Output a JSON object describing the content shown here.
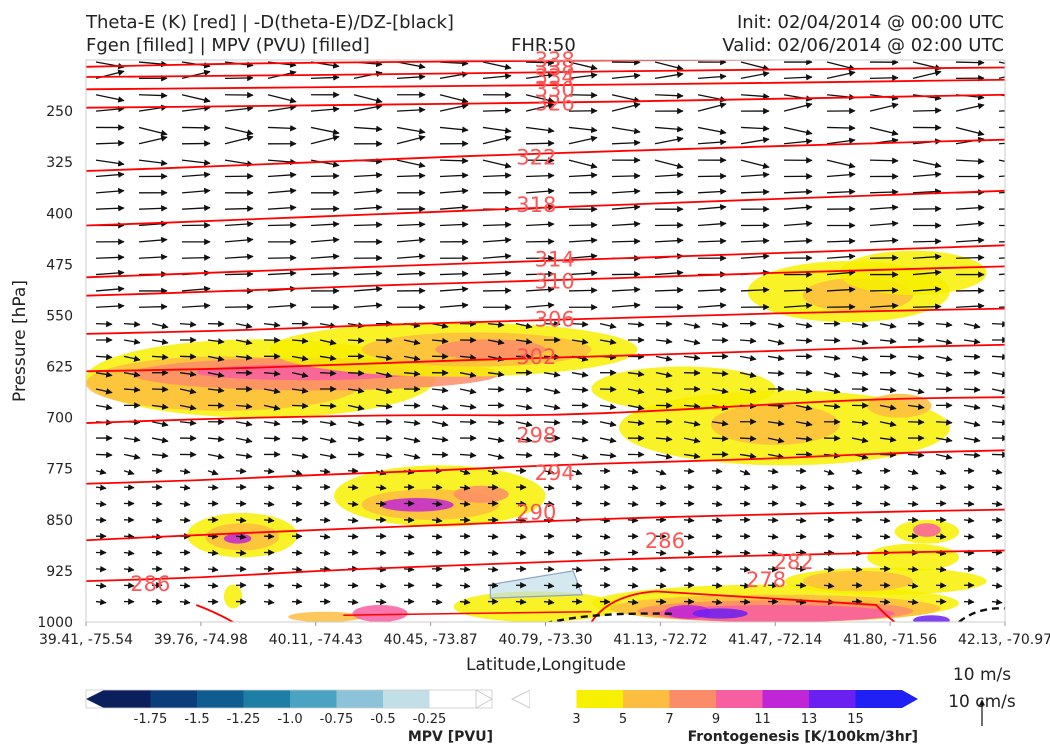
{
  "header": {
    "left_line1": "Theta-E (K) [red] | -D(theta-E)/DZ-[black]",
    "left_line2": "Fgen [filled] | MPV (PVU) [filled]",
    "fhr": "FHR:50",
    "init": "Init: 02/04/2014 @ 00:00 UTC",
    "valid": "Valid: 02/06/2014 @ 02:00 UTC"
  },
  "colors": {
    "theta_e": "#ff0000",
    "contour_label": "#ff5555",
    "vectors": "#111111",
    "mpv_scale": [
      "#0a1f5c",
      "#0b3d7a",
      "#0f5c91",
      "#1e7fa6",
      "#4ba3c3",
      "#8cc3d8",
      "#c2dfe8",
      "#ffffff"
    ],
    "fgen_scale": [
      "#ffffff",
      "#f7f000",
      "#fdbd40",
      "#fb8c6a",
      "#f85fa0",
      "#c025d6",
      "#6a20f0",
      "#2020f5"
    ]
  },
  "chart_data": {
    "type": "cross-section",
    "xlabel": "Latitude,Longitude",
    "ylabel": "Pressure [hPa]",
    "y_scale": "pressure (inverted)",
    "ylim": [
      1000,
      175
    ],
    "y_ticks": [
      250,
      325,
      400,
      475,
      550,
      625,
      700,
      775,
      850,
      925,
      1000
    ],
    "x_ticks": [
      "39.41, -75.54",
      "39.76, -74.98",
      "40.11, -74.43",
      "40.45, -73.87",
      "40.79, -73.30",
      "41.13, -72.72",
      "41.47, -72.14",
      "41.80, -71.56",
      "42.13, -70.97"
    ],
    "theta_e_contours": [
      {
        "label": "338",
        "y": [
          185,
          180,
          178,
          176,
          175,
          174,
          172
        ]
      },
      {
        "label": "334",
        "y": [
          200,
          198,
          196,
          193,
          190,
          188,
          186
        ]
      },
      {
        "label": "330",
        "y": [
          218,
          216,
          214,
          212,
          210,
          207,
          204
        ]
      },
      {
        "label": "326",
        "y": [
          245,
          243,
          240,
          238,
          234,
          230,
          226
        ]
      },
      {
        "label": "322",
        "y": [
          338,
          330,
          320,
          312,
          305,
          298,
          292
        ]
      },
      {
        "label": "318",
        "y": [
          418,
          410,
          400,
          392,
          383,
          375,
          367
        ]
      },
      {
        "label": "314",
        "y": [
          494,
          486,
          477,
          470,
          462,
          455,
          447
        ]
      },
      {
        "label": "310",
        "y": [
          521,
          514,
          505,
          499,
          491,
          484,
          478
        ]
      },
      {
        "label": "306",
        "y": [
          577,
          572,
          563,
          557,
          550,
          544,
          540
        ]
      },
      {
        "label": "302",
        "y": [
          632,
          628,
          619,
          612,
          606,
          598,
          593
        ]
      },
      {
        "label": "298",
        "y": [
          708,
          702,
          698,
          696,
          697,
          690,
          680,
          672,
          670
        ]
      },
      {
        "label": "294",
        "y": [
          797,
          792,
          784,
          778,
          770,
          765,
          760,
          752,
          748
        ]
      },
      {
        "label": "290",
        "y": [
          880,
          872,
          865,
          858,
          852,
          846,
          842,
          838,
          835
        ]
      },
      {
        "label": "286",
        "y": [
          940,
          935,
          925,
          918,
          912,
          906,
          902,
          898,
          895
        ]
      }
    ],
    "contour_labels": [
      {
        "text": "338",
        "x": 0.51,
        "p": 175
      },
      {
        "text": "338",
        "x": 0.51,
        "p": 186
      },
      {
        "text": "334",
        "x": 0.51,
        "p": 200
      },
      {
        "text": "330",
        "x": 0.51,
        "p": 218
      },
      {
        "text": "326",
        "x": 0.51,
        "p": 239
      },
      {
        "text": "322",
        "x": 0.49,
        "p": 318
      },
      {
        "text": "318",
        "x": 0.49,
        "p": 388
      },
      {
        "text": "314",
        "x": 0.51,
        "p": 468
      },
      {
        "text": "310",
        "x": 0.51,
        "p": 500
      },
      {
        "text": "306",
        "x": 0.51,
        "p": 556
      },
      {
        "text": "302",
        "x": 0.49,
        "p": 611
      },
      {
        "text": "298",
        "x": 0.49,
        "p": 726
      },
      {
        "text": "294",
        "x": 0.51,
        "p": 781
      },
      {
        "text": "290",
        "x": 0.49,
        "p": 839
      },
      {
        "text": "286",
        "x": 0.63,
        "p": 881
      },
      {
        "text": "286",
        "x": 0.07,
        "p": 944
      },
      {
        "text": "282",
        "x": 0.77,
        "p": 912
      },
      {
        "text": "278",
        "x": 0.74,
        "p": 938
      }
    ],
    "vector_reference": {
      "horizontal": "10 m/s",
      "vertical": "10 cm/s"
    },
    "colorbars": [
      {
        "title": "MPV [PVU]",
        "ticks": [
          "-1.75",
          "-1.5",
          "-1.25",
          "-1.0",
          "-0.75",
          "-0.5",
          "-0.25"
        ]
      },
      {
        "title": "Frontogenesis [K/100km/3hr]",
        "ticks": [
          "3",
          "5",
          "7",
          "9",
          "11",
          "13",
          "15"
        ]
      }
    ]
  }
}
